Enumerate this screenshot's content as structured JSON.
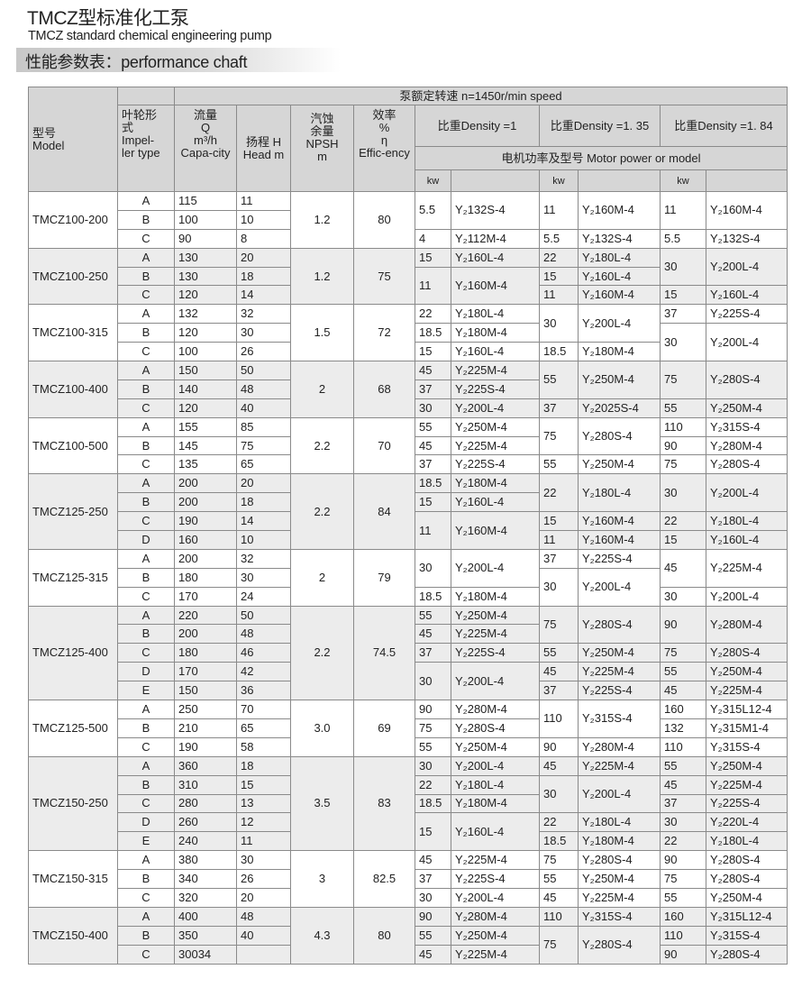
{
  "header": {
    "title": "TMCZ型标准化工泵",
    "subtitle": "TMCZ standard chemical engineering pump",
    "section": "性能参数表：performance chaft"
  },
  "table_header": {
    "model": "型号\nModel",
    "speed": "泵额定转速 n=1450r/min speed",
    "impeller": "叶轮形\n式\nImpel-\nler type",
    "flow": "流量\nQ\nm³/h\nCapa-city",
    "head": "扬程 H\nHead m",
    "npsh": "汽蚀\n余量\nNPSH\nm",
    "efficiency": "效率\n%\nη\nEffic-ency",
    "density1": "比重Density =1",
    "density2": "比重Density =1. 35",
    "density3": "比重Density =1. 84",
    "motor": "电机功率及型号 Motor power or model",
    "kw": "kw"
  },
  "colors": {
    "header_bg": "#d6d6d6",
    "alt_row_bg": "#ececec",
    "border": "#8a8a8a"
  },
  "groups": [
    {
      "model": "TMCZ100-200",
      "npsh": "1.2",
      "eff": "80",
      "rows": [
        {
          "imp": "A",
          "q": "115",
          "h": "11",
          "m": [
            {
              "v": "5.5",
              "rs": 2
            },
            {
              "v": "Y₂132S-4",
              "rs": 2
            },
            {
              "v": "11",
              "rs": 2
            },
            {
              "v": "Y₂160M-4",
              "rs": 2
            },
            {
              "v": "11",
              "rs": 2
            },
            {
              "v": "Y₂160M-4",
              "rs": 2
            }
          ]
        },
        {
          "imp": "B",
          "q": "100",
          "h": "10",
          "m": [
            null,
            null,
            null,
            null,
            null,
            null
          ]
        },
        {
          "imp": "C",
          "q": "90",
          "h": "8",
          "m": [
            "4",
            "Y₂112M-4",
            "5.5",
            "Y₂132S-4",
            "5.5",
            "Y₂132S-4"
          ]
        }
      ]
    },
    {
      "model": "TMCZ100-250",
      "npsh": "1.2",
      "eff": "75",
      "rows": [
        {
          "imp": "A",
          "q": "130",
          "h": "20",
          "m": [
            "15",
            "Y₂160L-4",
            "22",
            "Y₂180L-4",
            {
              "v": "30",
              "rs": 2
            },
            {
              "v": "Y₂200L-4",
              "rs": 2
            }
          ]
        },
        {
          "imp": "B",
          "q": "130",
          "h": "18",
          "m": [
            {
              "v": "11",
              "rs": 2
            },
            {
              "v": "Y₂160M-4",
              "rs": 2
            },
            "15",
            "Y₂160L-4",
            null,
            null
          ]
        },
        {
          "imp": "C",
          "q": "120",
          "h": "14",
          "m": [
            null,
            null,
            "11",
            "Y₂160M-4",
            "15",
            "Y₂160L-4"
          ]
        }
      ]
    },
    {
      "model": "TMCZ100-315",
      "npsh": "1.5",
      "eff": "72",
      "rows": [
        {
          "imp": "A",
          "q": "132",
          "h": "32",
          "m": [
            "22",
            "Y₂180L-4",
            {
              "v": "30",
              "rs": 2
            },
            {
              "v": "Y₂200L-4",
              "rs": 2
            },
            "37",
            "Y₂225S-4"
          ]
        },
        {
          "imp": "B",
          "q": "120",
          "h": "30",
          "m": [
            "18.5",
            "Y₂180M-4",
            null,
            null,
            {
              "v": "30",
              "rs": 2
            },
            {
              "v": "Y₂200L-4",
              "rs": 2
            }
          ]
        },
        {
          "imp": "C",
          "q": "100",
          "h": "26",
          "m": [
            "15",
            "Y₂160L-4",
            "18.5",
            "Y₂180M-4",
            null,
            null
          ]
        }
      ]
    },
    {
      "model": "TMCZ100-400",
      "npsh": "2",
      "eff": "68",
      "rows": [
        {
          "imp": "A",
          "q": "150",
          "h": "50",
          "m": [
            "45",
            "Y₂225M-4",
            {
              "v": "55",
              "rs": 2
            },
            {
              "v": "Y₂250M-4",
              "rs": 2
            },
            {
              "v": "75",
              "rs": 2
            },
            {
              "v": "Y₂280S-4",
              "rs": 2
            }
          ]
        },
        {
          "imp": "B",
          "q": "140",
          "h": "48",
          "m": [
            "37",
            "Y₂225S-4",
            null,
            null,
            null,
            null
          ]
        },
        {
          "imp": "C",
          "q": "120",
          "h": "40",
          "m": [
            "30",
            "Y₂200L-4",
            "37",
            "Y₂2025S-4",
            "55",
            "Y₂250M-4"
          ]
        }
      ]
    },
    {
      "model": "TMCZ100-500",
      "npsh": "2.2",
      "eff": "70",
      "rows": [
        {
          "imp": "A",
          "q": "155",
          "h": "85",
          "m": [
            "55",
            "Y₂250M-4",
            {
              "v": "75",
              "rs": 2
            },
            {
              "v": "Y₂280S-4",
              "rs": 2
            },
            "110",
            "Y₂315S-4"
          ]
        },
        {
          "imp": "B",
          "q": "145",
          "h": "75",
          "m": [
            "45",
            "Y₂225M-4",
            null,
            null,
            "90",
            "Y₂280M-4"
          ]
        },
        {
          "imp": "C",
          "q": "135",
          "h": "65",
          "m": [
            "37",
            "Y₂225S-4",
            "55",
            "Y₂250M-4",
            "75",
            "Y₂280S-4"
          ]
        }
      ]
    },
    {
      "model": "TMCZ125-250",
      "npsh": "2.2",
      "eff": "84",
      "rows": [
        {
          "imp": "A",
          "q": "200",
          "h": "20",
          "m": [
            "18.5",
            "Y₂180M-4",
            {
              "v": "22",
              "rs": 2
            },
            {
              "v": "Y₂180L-4",
              "rs": 2
            },
            {
              "v": "30",
              "rs": 2
            },
            {
              "v": "Y₂200L-4",
              "rs": 2
            }
          ]
        },
        {
          "imp": "B",
          "q": "200",
          "h": "18",
          "m": [
            "15",
            "Y₂160L-4",
            null,
            null,
            null,
            null
          ]
        },
        {
          "imp": "C",
          "q": "190",
          "h": "14",
          "m": [
            {
              "v": "11",
              "rs": 2
            },
            {
              "v": "Y₂160M-4",
              "rs": 2
            },
            "15",
            "Y₂160M-4",
            "22",
            "Y₂180L-4"
          ]
        },
        {
          "imp": "D",
          "q": "160",
          "h": "10",
          "m": [
            null,
            null,
            "11",
            "Y₂160M-4",
            "15",
            "Y₂160L-4"
          ]
        }
      ]
    },
    {
      "model": "TMCZ125-315",
      "npsh": "2",
      "eff": "79",
      "rows": [
        {
          "imp": "A",
          "q": "200",
          "h": "32",
          "m": [
            {
              "v": "30",
              "rs": 2
            },
            {
              "v": "Y₂200L-4",
              "rs": 2
            },
            "37",
            "Y₂225S-4",
            {
              "v": "45",
              "rs": 2
            },
            {
              "v": "Y₂225M-4",
              "rs": 2
            }
          ]
        },
        {
          "imp": "B",
          "q": "180",
          "h": "30",
          "m": [
            null,
            null,
            {
              "v": "30",
              "rs": 2
            },
            {
              "v": "Y₂200L-4",
              "rs": 2
            },
            null,
            null
          ]
        },
        {
          "imp": "C",
          "q": "170",
          "h": "24",
          "m": [
            "18.5",
            "Y₂180M-4",
            null,
            null,
            "30",
            "Y₂200L-4"
          ]
        }
      ]
    },
    {
      "model": "TMCZ125-400",
      "npsh": "2.2",
      "eff": "74.5",
      "rows": [
        {
          "imp": "A",
          "q": "220",
          "h": "50",
          "m": [
            "55",
            "Y₂250M-4",
            {
              "v": "75",
              "rs": 2
            },
            {
              "v": "Y₂280S-4",
              "rs": 2
            },
            {
              "v": "90",
              "rs": 2
            },
            {
              "v": "Y₂280M-4",
              "rs": 2
            }
          ]
        },
        {
          "imp": "B",
          "q": "200",
          "h": "48",
          "m": [
            "45",
            "Y₂225M-4",
            null,
            null,
            null,
            null
          ]
        },
        {
          "imp": "C",
          "q": "180",
          "h": "46",
          "m": [
            "37",
            "Y₂225S-4",
            "55",
            "Y₂250M-4",
            "75",
            "Y₂280S-4"
          ]
        },
        {
          "imp": "D",
          "q": "170",
          "h": "42",
          "m": [
            {
              "v": "30",
              "rs": 2
            },
            {
              "v": "Y₂200L-4",
              "rs": 2
            },
            "45",
            "Y₂225M-4",
            "55",
            "Y₂250M-4"
          ]
        },
        {
          "imp": "E",
          "q": "150",
          "h": "36",
          "m": [
            null,
            null,
            "37",
            "Y₂225S-4",
            "45",
            "Y₂225M-4"
          ]
        }
      ]
    },
    {
      "model": "TMCZ125-500",
      "npsh": "3.0",
      "eff": "69",
      "rows": [
        {
          "imp": "A",
          "q": "250",
          "h": "70",
          "m": [
            "90",
            "Y₂280M-4",
            {
              "v": "110",
              "rs": 2
            },
            {
              "v": "Y₂315S-4",
              "rs": 2
            },
            "160",
            "Y₂315L12-4"
          ]
        },
        {
          "imp": "B",
          "q": "210",
          "h": "65",
          "m": [
            "75",
            "Y₂280S-4",
            null,
            null,
            "132",
            "Y₂315M1-4"
          ]
        },
        {
          "imp": "C",
          "q": "190",
          "h": "58",
          "m": [
            "55",
            "Y₂250M-4",
            "90",
            "Y₂280M-4",
            "110",
            "Y₂315S-4"
          ]
        }
      ]
    },
    {
      "model": "TMCZ150-250",
      "npsh": "3.5",
      "eff": "83",
      "rows": [
        {
          "imp": "A",
          "q": "360",
          "h": "18",
          "m": [
            "30",
            "Y₂200L-4",
            "45",
            "Y₂225M-4",
            "55",
            "Y₂250M-4"
          ]
        },
        {
          "imp": "B",
          "q": "310",
          "h": "15",
          "m": [
            "22",
            "Y₂180L-4",
            {
              "v": "30",
              "rs": 2
            },
            {
              "v": "Y₂200L-4",
              "rs": 2
            },
            "45",
            "Y₂225M-4"
          ]
        },
        {
          "imp": "C",
          "q": "280",
          "h": "13",
          "m": [
            "18.5",
            "Y₂180M-4",
            null,
            null,
            "37",
            "Y₂225S-4"
          ]
        },
        {
          "imp": "D",
          "q": "260",
          "h": "12",
          "m": [
            {
              "v": "15",
              "rs": 2
            },
            {
              "v": "Y₂160L-4",
              "rs": 2
            },
            "22",
            "Y₂180L-4",
            "30",
            "Y₂220L-4"
          ]
        },
        {
          "imp": "E",
          "q": "240",
          "h": "11",
          "m": [
            null,
            null,
            "18.5",
            "Y₂180M-4",
            "22",
            "Y₂180L-4"
          ]
        }
      ]
    },
    {
      "model": "TMCZ150-315",
      "npsh": "3",
      "eff": "82.5",
      "rows": [
        {
          "imp": "A",
          "q": "380",
          "h": "30",
          "m": [
            "45",
            "Y₂225M-4",
            "75",
            "Y₂280S-4",
            "90",
            "Y₂280S-4"
          ]
        },
        {
          "imp": "B",
          "q": "340",
          "h": "26",
          "m": [
            "37",
            "Y₂225S-4",
            "55",
            "Y₂250M-4",
            "75",
            "Y₂280S-4"
          ]
        },
        {
          "imp": "C",
          "q": "320",
          "h": "20",
          "m": [
            "30",
            "Y₂200L-4",
            "45",
            "Y₂225M-4",
            "55",
            "Y₂250M-4"
          ]
        }
      ]
    },
    {
      "model": "TMCZ150-400",
      "npsh": "4.3",
      "eff": "80",
      "rows": [
        {
          "imp": "A",
          "q": "400",
          "h": "48",
          "m": [
            "90",
            "Y₂280M-4",
            "110",
            "Y₂315S-4",
            "160",
            "Y₂315L12-4"
          ]
        },
        {
          "imp": "B",
          "q": "350",
          "h": "40",
          "m": [
            "55",
            "Y₂250M-4",
            {
              "v": "75",
              "rs": 2
            },
            {
              "v": "Y₂280S-4",
              "rs": 2
            },
            "110",
            "Y₂315S-4"
          ]
        },
        {
          "imp": "C",
          "q": "30034",
          "h": "",
          "m": [
            "45",
            "Y₂225M-4",
            null,
            null,
            "90",
            "Y₂280S-4"
          ]
        }
      ]
    }
  ]
}
